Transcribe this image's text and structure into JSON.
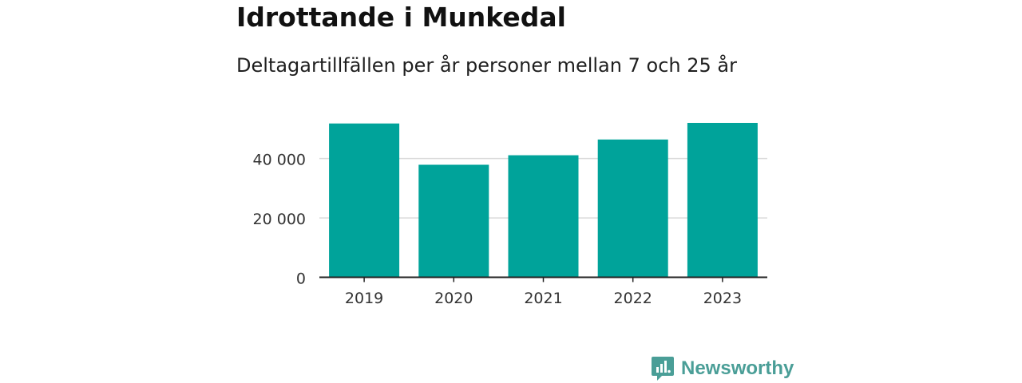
{
  "chart_data": {
    "type": "bar",
    "title": "Idrottande i Munkedal",
    "subtitle": "Deltagartillfällen per år personer mellan 7 och 25 år",
    "categories": [
      "2019",
      "2020",
      "2021",
      "2022",
      "2023"
    ],
    "values": [
      51800,
      37900,
      41100,
      46400,
      52000
    ],
    "ylim": [
      0,
      52000
    ],
    "yticks": [
      0,
      20000,
      40000
    ],
    "ytick_labels": [
      "0",
      "20 000",
      "40 000"
    ],
    "grid": true,
    "bar_color": "#00a39a",
    "grid_color": "#d9d9d9",
    "axis_color": "#222222"
  },
  "brand": {
    "name": "Newsworthy",
    "icon": "newsworthy-logo-icon",
    "color": "#4a9e97"
  }
}
